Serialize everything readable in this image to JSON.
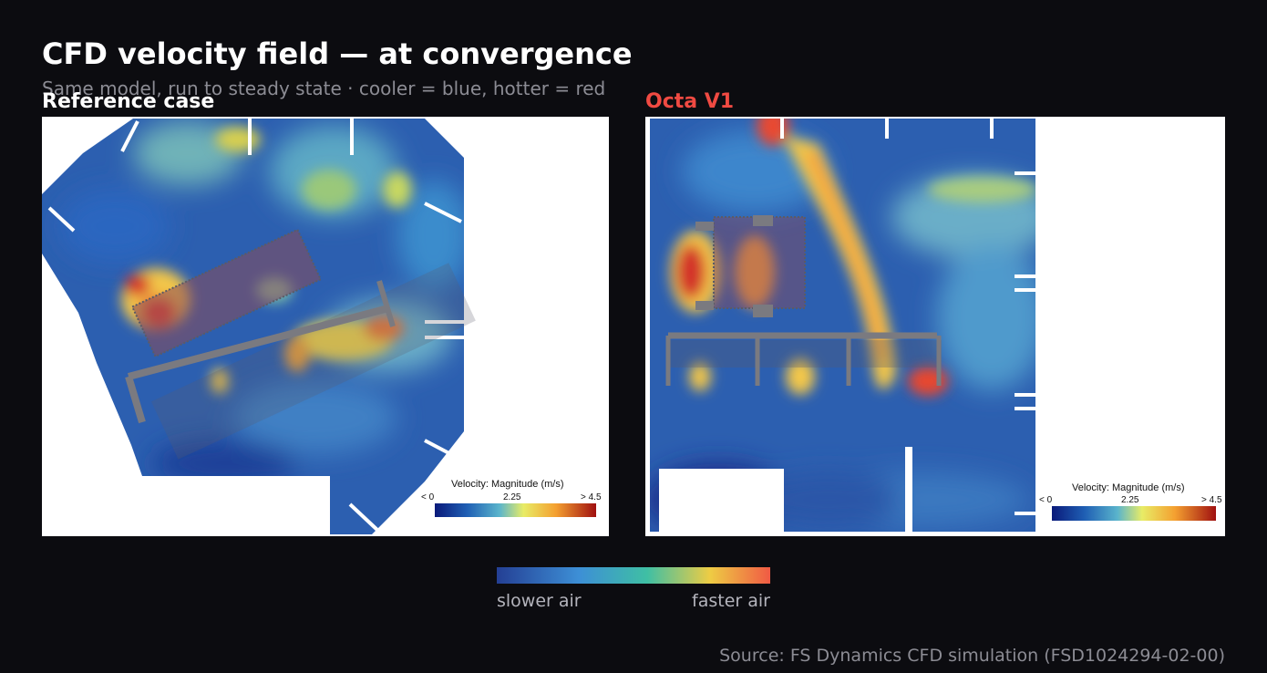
{
  "header": {
    "title": "CFD velocity field — at convergence",
    "subtitle": "Same model, run to steady state · cooler = blue, hotter = red"
  },
  "panels": [
    {
      "label": "Reference case",
      "colorbar": {
        "title": "Velocity: Magnitude (m/s)",
        "min_label": "< 0",
        "mid_label": "2.25",
        "max_label": "> 4.5"
      }
    },
    {
      "label": "Octa V1",
      "colorbar": {
        "title": "Velocity: Magnitude (m/s)",
        "min_label": "< 0",
        "mid_label": "2.25",
        "max_label": "> 4.5"
      }
    }
  ],
  "legend": {
    "left_label": "slower air",
    "right_label": "faster air"
  },
  "source": "Source: FS Dynamics CFD simulation (FSD1024294-02-00)",
  "colors": {
    "background": "#0c0c10",
    "accent_red": "#f04a42",
    "slow": "#243f94",
    "fast": "#f05a44"
  }
}
